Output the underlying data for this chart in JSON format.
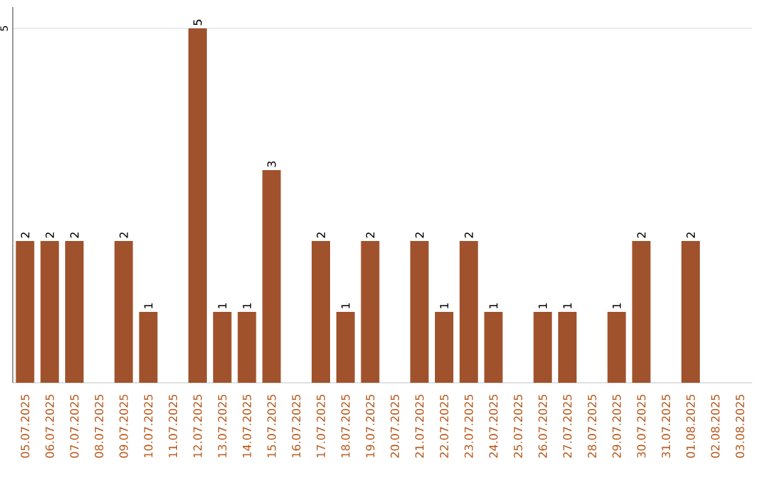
{
  "chart_data": {
    "type": "bar",
    "categories": [
      "05.07.2025",
      "06.07.2025",
      "07.07.2025",
      "08.07.2025",
      "09.07.2025",
      "10.07.2025",
      "11.07.2025",
      "12.07.2025",
      "13.07.2025",
      "14.07.2025",
      "15.07.2025",
      "16.07.2025",
      "17.07.2025",
      "18.07.2025",
      "19.07.2025",
      "20.07.2025",
      "21.07.2025",
      "22.07.2025",
      "23.07.2025",
      "24.07.2025",
      "25.07.2025",
      "26.07.2025",
      "27.07.2025",
      "28.07.2025",
      "29.07.2025",
      "30.07.2025",
      "31.07.2025",
      "01.08.2025",
      "02.08.2025",
      "03.08.2025"
    ],
    "values": [
      2,
      2,
      2,
      0,
      2,
      1,
      0,
      5,
      1,
      1,
      3,
      0,
      2,
      1,
      2,
      0,
      2,
      1,
      2,
      1,
      0,
      1,
      1,
      0,
      1,
      2,
      0,
      2,
      0,
      0
    ],
    "value_labels": [
      "2",
      "2",
      "2",
      null,
      "2",
      "1",
      null,
      "5",
      "1",
      "1",
      "3",
      null,
      "2",
      "1",
      "2",
      null,
      "2",
      "1",
      "2",
      "1",
      null,
      "1",
      "1",
      null,
      "1",
      "2",
      null,
      "2",
      null,
      null
    ],
    "color": "#a0522d",
    "ylim": [
      0,
      5.3
    ],
    "yticks": [
      5
    ],
    "grid": "y"
  }
}
